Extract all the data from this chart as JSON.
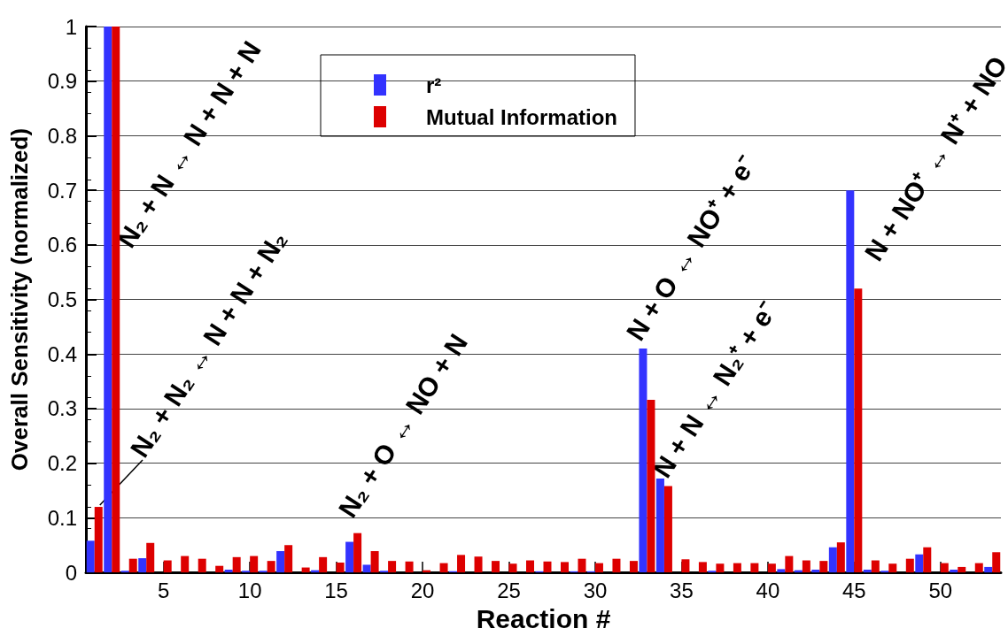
{
  "chart_data": {
    "type": "bar",
    "xlabel": "Reaction #",
    "ylabel": "Overall Sensitivity (normalized)",
    "x": [
      1,
      2,
      3,
      4,
      5,
      6,
      7,
      8,
      9,
      10,
      11,
      12,
      13,
      14,
      15,
      16,
      17,
      18,
      19,
      20,
      21,
      22,
      23,
      24,
      25,
      26,
      27,
      28,
      29,
      30,
      31,
      32,
      33,
      34,
      35,
      36,
      37,
      38,
      39,
      40,
      41,
      42,
      43,
      44,
      45,
      46,
      47,
      48,
      49,
      50,
      51,
      52,
      53
    ],
    "xlim": [
      0.5,
      53.5
    ],
    "xticks": [
      5,
      10,
      15,
      20,
      25,
      30,
      35,
      40,
      45,
      50
    ],
    "ylim": [
      0,
      1
    ],
    "yticks": [
      0,
      0.1,
      0.2,
      0.3,
      0.4,
      0.5,
      0.6,
      0.7,
      0.8,
      0.9,
      1
    ],
    "series": [
      {
        "name": "r²",
        "color": "#3333ff",
        "values": [
          0.058,
          1,
          0.003,
          0.026,
          0,
          0,
          0,
          0,
          0.005,
          0.003,
          0.003,
          0.039,
          0,
          0.004,
          0,
          0.056,
          0.014,
          0.003,
          0,
          0,
          0,
          0.002,
          0,
          0,
          0,
          0,
          0.002,
          0,
          0.002,
          0.002,
          0,
          0,
          0.41,
          0.172,
          0,
          0,
          0.003,
          0,
          0,
          0,
          0.006,
          0.004,
          0.005,
          0.046,
          0.7,
          0.005,
          0.003,
          0,
          0.033,
          0,
          0.005,
          0,
          0.01
        ]
      },
      {
        "name": "Mutual Information",
        "color": "#dd0000",
        "values": [
          0.12,
          1,
          0.025,
          0.054,
          0.022,
          0.03,
          0.025,
          0.012,
          0.028,
          0.03,
          0.021,
          0.05,
          0.009,
          0.028,
          0.018,
          0.072,
          0.039,
          0.021,
          0.02,
          0.004,
          0.017,
          0.032,
          0.029,
          0.021,
          0.016,
          0.022,
          0.02,
          0.019,
          0.025,
          0.017,
          0.025,
          0.021,
          0.316,
          0.158,
          0.024,
          0.019,
          0.016,
          0.017,
          0.017,
          0.016,
          0.03,
          0.022,
          0.021,
          0.055,
          0.52,
          0.022,
          0.016,
          0.025,
          0.046,
          0.017,
          0.01,
          0.017,
          0.037
        ]
      }
    ],
    "annotations": [
      "N₂ + N ↔ N + N + N",
      {
        "text": "N₂ + N₂ ↔ N + N + N₂",
        "x": 1,
        "y": 0.12
      },
      "N₂ + O ↔ NO + N",
      "N + O ↔ NO⁺ + e⁻",
      "N + N ↔ N₂⁺ + e⁻",
      "N + NO⁺ ↔ N⁺ + NO"
    ],
    "grid": "y",
    "legend": "top"
  }
}
